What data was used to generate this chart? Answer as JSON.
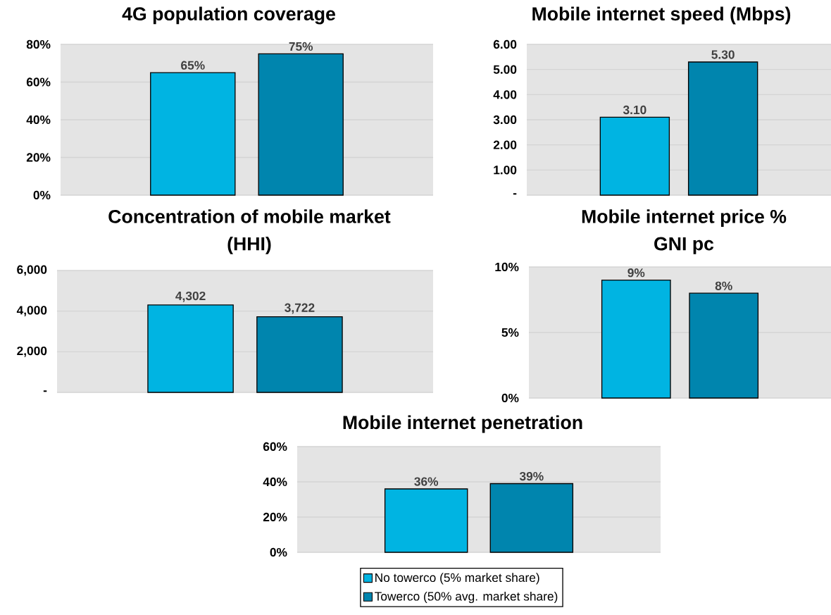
{
  "chart_data": [
    {
      "type": "bar",
      "title": "4G population coverage",
      "categories": [
        null
      ],
      "series": [
        {
          "color": "#00b4e2",
          "values": [
            65
          ],
          "value_labels": [
            "65%"
          ]
        },
        {
          "color": "#0085ae",
          "values": [
            75
          ],
          "value_labels": [
            "75%"
          ]
        }
      ],
      "ylim": [
        0,
        80
      ],
      "yticks": [
        {
          "value": 0,
          "label": "0%"
        },
        {
          "value": 20,
          "label": "20%"
        },
        {
          "value": 40,
          "label": "40%"
        },
        {
          "value": 60,
          "label": "60%"
        },
        {
          "value": 80,
          "label": "80%"
        }
      ],
      "grid": "y"
    },
    {
      "type": "bar",
      "title": "Mobile internet speed (Mbps)",
      "categories": [
        null
      ],
      "series": [
        {
          "color": "#00b4e2",
          "values": [
            3.1
          ],
          "value_labels": [
            "3.10"
          ]
        },
        {
          "color": "#0085ae",
          "values": [
            5.3
          ],
          "value_labels": [
            "5.30"
          ]
        }
      ],
      "ylim": [
        0,
        6
      ],
      "yticks": [
        {
          "value": 0,
          "label": "-"
        },
        {
          "value": 1,
          "label": "1.00"
        },
        {
          "value": 2,
          "label": "2.00"
        },
        {
          "value": 3,
          "label": "3.00"
        },
        {
          "value": 4,
          "label": "4.00"
        },
        {
          "value": 5,
          "label": "5.00"
        },
        {
          "value": 6,
          "label": "6.00"
        }
      ],
      "grid": "y"
    },
    {
      "type": "bar",
      "title": "Concentration of mobile market (HHI)",
      "categories": [
        null
      ],
      "series": [
        {
          "color": "#00b4e2",
          "values": [
            4302
          ],
          "value_labels": [
            "4,302"
          ]
        },
        {
          "color": "#0085ae",
          "values": [
            3722
          ],
          "value_labels": [
            "3,722"
          ]
        }
      ],
      "ylim": [
        0,
        6000
      ],
      "yticks": [
        {
          "value": 0,
          "label": "-"
        },
        {
          "value": 2000,
          "label": "2,000"
        },
        {
          "value": 4000,
          "label": "4,000"
        },
        {
          "value": 6000,
          "label": "6,000"
        }
      ],
      "grid": "y"
    },
    {
      "type": "bar",
      "title": "Mobile internet price % GNI pc",
      "categories": [
        null
      ],
      "series": [
        {
          "color": "#00b4e2",
          "values": [
            9
          ],
          "value_labels": [
            "9%"
          ]
        },
        {
          "color": "#0085ae",
          "values": [
            8
          ],
          "value_labels": [
            "8%"
          ]
        }
      ],
      "ylim": [
        0,
        10
      ],
      "yticks": [
        {
          "value": 0,
          "label": "0%"
        },
        {
          "value": 5,
          "label": "5%"
        },
        {
          "value": 10,
          "label": "10%"
        }
      ],
      "grid": "y"
    },
    {
      "type": "bar",
      "title": "Mobile internet penetration",
      "categories": [
        null
      ],
      "series": [
        {
          "name": "No towerco (5% market share)",
          "color": "#00b4e2",
          "values": [
            36
          ],
          "value_labels": [
            "36%"
          ]
        },
        {
          "name": "Towerco (50% avg. market share)",
          "color": "#0085ae",
          "values": [
            39
          ],
          "value_labels": [
            "39%"
          ]
        }
      ],
      "ylim": [
        0,
        60
      ],
      "yticks": [
        {
          "value": 0,
          "label": "0%"
        },
        {
          "value": 20,
          "label": "20%"
        },
        {
          "value": 40,
          "label": "40%"
        },
        {
          "value": 60,
          "label": "60%"
        }
      ],
      "grid": "y",
      "legend": "bottom"
    }
  ]
}
